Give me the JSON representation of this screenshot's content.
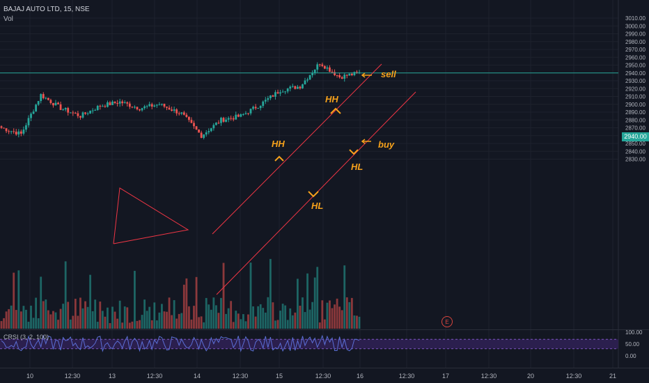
{
  "header": {
    "symbol_title": "BAJAJ AUTO LTD, 15, NSE",
    "volume_label": "Vol"
  },
  "indicator": {
    "label": "CRSI (3, 2, 100)",
    "axis_ticks": [
      "100.00",
      "50.00",
      "0.00"
    ]
  },
  "price_axis": {
    "ticks": [
      "3010.00",
      "3000.00",
      "2990.00",
      "2980.00",
      "2970.00",
      "2960.00",
      "2950.00",
      "2940.00",
      "2930.00",
      "2920.00",
      "2910.00",
      "2900.00",
      "2890.00",
      "2880.00",
      "2870.00",
      "2860.00",
      "2850.00",
      "2840.00",
      "2830.00"
    ],
    "current_price": "2940.00"
  },
  "time_axis": {
    "ticks": [
      "10",
      "12:30",
      "13",
      "12:30",
      "14",
      "12:30",
      "15",
      "12:30",
      "16",
      "12:30",
      "17",
      "12:30",
      "20",
      "12:30",
      "21"
    ]
  },
  "annotations": {
    "hh_left": "HH",
    "hh_right": "HH",
    "hl_left": "HL",
    "hl_right": "HL",
    "sell": "sell",
    "buy": "buy",
    "earnings_marker": "E"
  },
  "colors": {
    "background": "#131722",
    "up_candle": "#26a69a",
    "down_candle": "#ef5350",
    "up_volume": "#26a69a",
    "down_volume": "#ef5350",
    "annotation": "#f7a21b",
    "channel_line": "#f23645",
    "current_price_line": "#26a69a",
    "crsi_line": "#5b6fd6",
    "crsi_band": "#2b1f4e"
  },
  "chart_data": {
    "type": "candlestick",
    "title": "BAJAJ AUTO LTD, 15, NSE",
    "y_axis": {
      "min": 2830,
      "max": 3010,
      "unit": "price"
    },
    "current_price": 2940,
    "x_sessions": [
      "10",
      "13",
      "14",
      "15",
      "16",
      "17",
      "20",
      "21"
    ],
    "price_path": [
      {
        "t": "10 09:15",
        "close": 2870
      },
      {
        "t": "10 10:30",
        "close": 2862
      },
      {
        "t": "10 11:30",
        "close": 2912
      },
      {
        "t": "10 13:00",
        "close": 2895
      },
      {
        "t": "10 14:30",
        "close": 2885
      },
      {
        "t": "13 10:00",
        "close": 2898
      },
      {
        "t": "13 11:30",
        "close": 2903
      },
      {
        "t": "13 13:00",
        "close": 2895
      },
      {
        "t": "13 14:30",
        "close": 2900
      },
      {
        "t": "14 09:30",
        "close": 2888
      },
      {
        "t": "14 10:30",
        "close": 2860
      },
      {
        "t": "14 12:30",
        "close": 2880
      },
      {
        "t": "14 14:30",
        "close": 2885
      },
      {
        "t": "15 09:30",
        "close": 2900
      },
      {
        "t": "15 10:30",
        "close": 2918
      },
      {
        "t": "15 12:30",
        "close": 2923
      },
      {
        "t": "15 13:45",
        "close": 2953
      },
      {
        "t": "15 15:15",
        "close": 2935
      },
      {
        "t": "16 09:15",
        "close": 2940
      }
    ],
    "channel": {
      "upper_line": [
        {
          "t": "14 09:30",
          "price": 2886
        },
        {
          "t": "16 09:45",
          "price": 2985
        }
      ],
      "lower_line": [
        {
          "t": "14 09:30",
          "price": 2852
        },
        {
          "t": "16 12:00",
          "price": 2970
        }
      ]
    },
    "labels": [
      {
        "text": "HH",
        "t": "15 10:30",
        "price": 2928
      },
      {
        "text": "HL",
        "t": "15 12:30",
        "price": 2905
      },
      {
        "text": "HH",
        "t": "15 13:45",
        "price": 2956
      },
      {
        "text": "HL",
        "t": "15 15:00",
        "price": 2929
      },
      {
        "text": "sell",
        "price": 2978
      },
      {
        "text": "buy",
        "price": 2933
      }
    ],
    "volume": {
      "shown": true
    },
    "crsi": {
      "range": [
        0,
        100
      ],
      "band": [
        30,
        70
      ]
    }
  }
}
